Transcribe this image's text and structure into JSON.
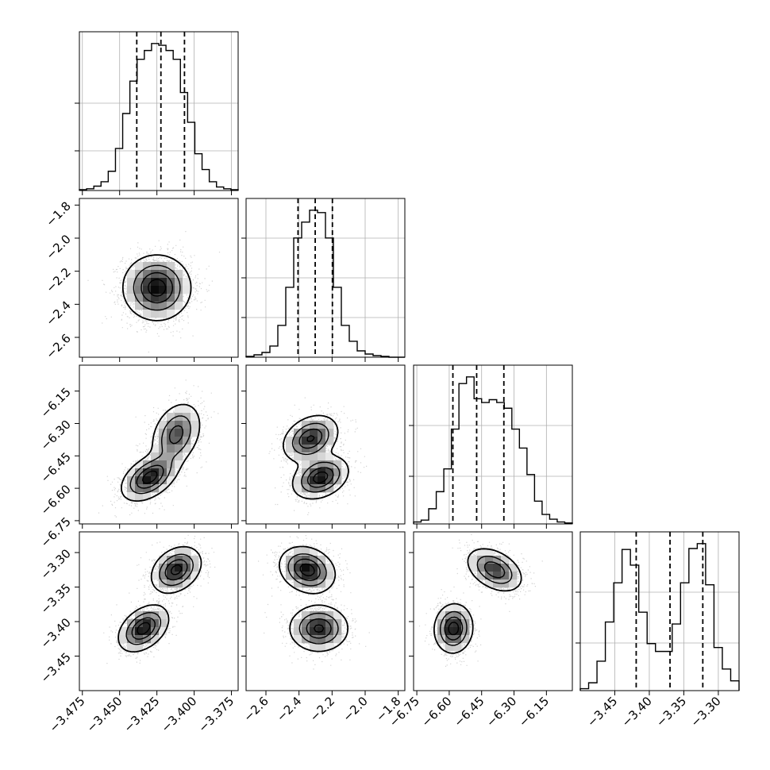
{
  "chart_data": {
    "type": "corner",
    "parameters": [
      {
        "ticks": [
          "−3.475",
          "−3.450",
          "−3.425",
          "−3.400",
          "−3.375"
        ],
        "tick_values": [
          -3.475,
          -3.45,
          -3.425,
          -3.4,
          -3.375
        ],
        "range": [
          -3.477,
          -3.3705
        ],
        "histogram": [
          1,
          2,
          5,
          10,
          22,
          48,
          88,
          125,
          150,
          160,
          168,
          166,
          160,
          150,
          112,
          78,
          42,
          24,
          10,
          4,
          2,
          1
        ],
        "quantiles": [
          -3.4385,
          -3.4223,
          -3.4065
        ]
      },
      {
        "ticks": [
          "−2.6",
          "−2.4",
          "−2.2",
          "−2.0",
          "−1.8"
        ],
        "tick_values": [
          -2.6,
          -2.4,
          -2.2,
          -2.0,
          -1.8
        ],
        "range": [
          -2.72,
          -1.76
        ],
        "histogram": [
          1,
          3,
          6,
          14,
          40,
          88,
          150,
          170,
          185,
          182,
          150,
          88,
          40,
          20,
          8,
          4,
          2,
          1,
          0,
          0
        ],
        "quantiles": [
          -2.406,
          -2.302,
          -2.198
        ]
      },
      {
        "ticks": [
          "−6.75",
          "−6.60",
          "−6.45",
          "−6.30",
          "−6.15"
        ],
        "tick_values": [
          -6.75,
          -6.6,
          -6.45,
          -6.3,
          -6.15
        ],
        "range": [
          -6.765,
          -6.03
        ],
        "histogram": [
          2,
          4,
          16,
          34,
          58,
          100,
          148,
          155,
          132,
          128,
          131,
          128,
          122,
          100,
          80,
          52,
          24,
          10,
          5,
          2,
          1
        ],
        "quantiles": [
          -6.583,
          -6.473,
          -6.347
        ]
      },
      {
        "ticks": [
          "−3.45",
          "−3.40",
          "−3.35",
          "−3.30"
        ],
        "tick_values": [
          -3.45,
          -3.4,
          -3.35,
          -3.3
        ],
        "range": [
          -3.5,
          -3.27
        ],
        "histogram": [
          2,
          8,
          30,
          70,
          110,
          144,
          128,
          80,
          48,
          40,
          40,
          68,
          110,
          145,
          150,
          108,
          44,
          22,
          10
        ],
        "quantiles": [
          -3.419,
          -3.37,
          -3.3225
        ]
      }
    ],
    "pairs": [
      {
        "row": 1,
        "col": 0,
        "modes": [
          {
            "x": -3.425,
            "y": -2.3,
            "sx": 0.0115,
            "sy": 0.1,
            "rho": 0.0,
            "w": 1.0
          }
        ]
      },
      {
        "row": 2,
        "col": 0,
        "modes": [
          {
            "x": -3.43,
            "y": -6.55,
            "sx": 0.0095,
            "sy": 0.055,
            "rho": 0.45,
            "w": 0.5
          },
          {
            "x": -3.412,
            "y": -6.35,
            "sx": 0.0085,
            "sy": 0.075,
            "rho": 0.3,
            "w": 0.5
          }
        ]
      },
      {
        "row": 2,
        "col": 1,
        "modes": [
          {
            "x": -2.33,
            "y": -6.37,
            "sx": 0.085,
            "sy": 0.055,
            "rho": 0.3,
            "w": 0.5
          },
          {
            "x": -2.27,
            "y": -6.55,
            "sx": 0.085,
            "sy": 0.05,
            "rho": 0.3,
            "w": 0.5
          }
        ]
      },
      {
        "row": 3,
        "col": 0,
        "modes": [
          {
            "x": -3.434,
            "y": -3.41,
            "sx": 0.0085,
            "sy": 0.017,
            "rho": 0.4,
            "w": 0.5
          },
          {
            "x": -3.412,
            "y": -3.325,
            "sx": 0.0085,
            "sy": 0.017,
            "rho": 0.3,
            "w": 0.5
          }
        ]
      },
      {
        "row": 3,
        "col": 1,
        "modes": [
          {
            "x": -2.35,
            "y": -3.325,
            "sx": 0.085,
            "sy": 0.017,
            "rho": -0.2,
            "w": 0.5
          },
          {
            "x": -2.28,
            "y": -3.41,
            "sx": 0.09,
            "sy": 0.017,
            "rho": 0.0,
            "w": 0.5
          }
        ]
      },
      {
        "row": 3,
        "col": 2,
        "modes": [
          {
            "x": -6.58,
            "y": -3.41,
            "sx": 0.045,
            "sy": 0.018,
            "rho": 0.05,
            "w": 0.5
          },
          {
            "x": -6.39,
            "y": -3.325,
            "sx": 0.065,
            "sy": 0.016,
            "rho": -0.4,
            "w": 0.5
          }
        ]
      }
    ],
    "diag_y_ticks": [
      [
        0.25,
        0.55
      ],
      [
        0.25,
        0.5,
        0.75
      ],
      [
        0.3,
        0.62
      ],
      [
        0.3,
        0.62
      ]
    ],
    "grid": true,
    "colors": {
      "line": "#000000",
      "grid": "#b0b0b0",
      "points": "#808080"
    }
  }
}
